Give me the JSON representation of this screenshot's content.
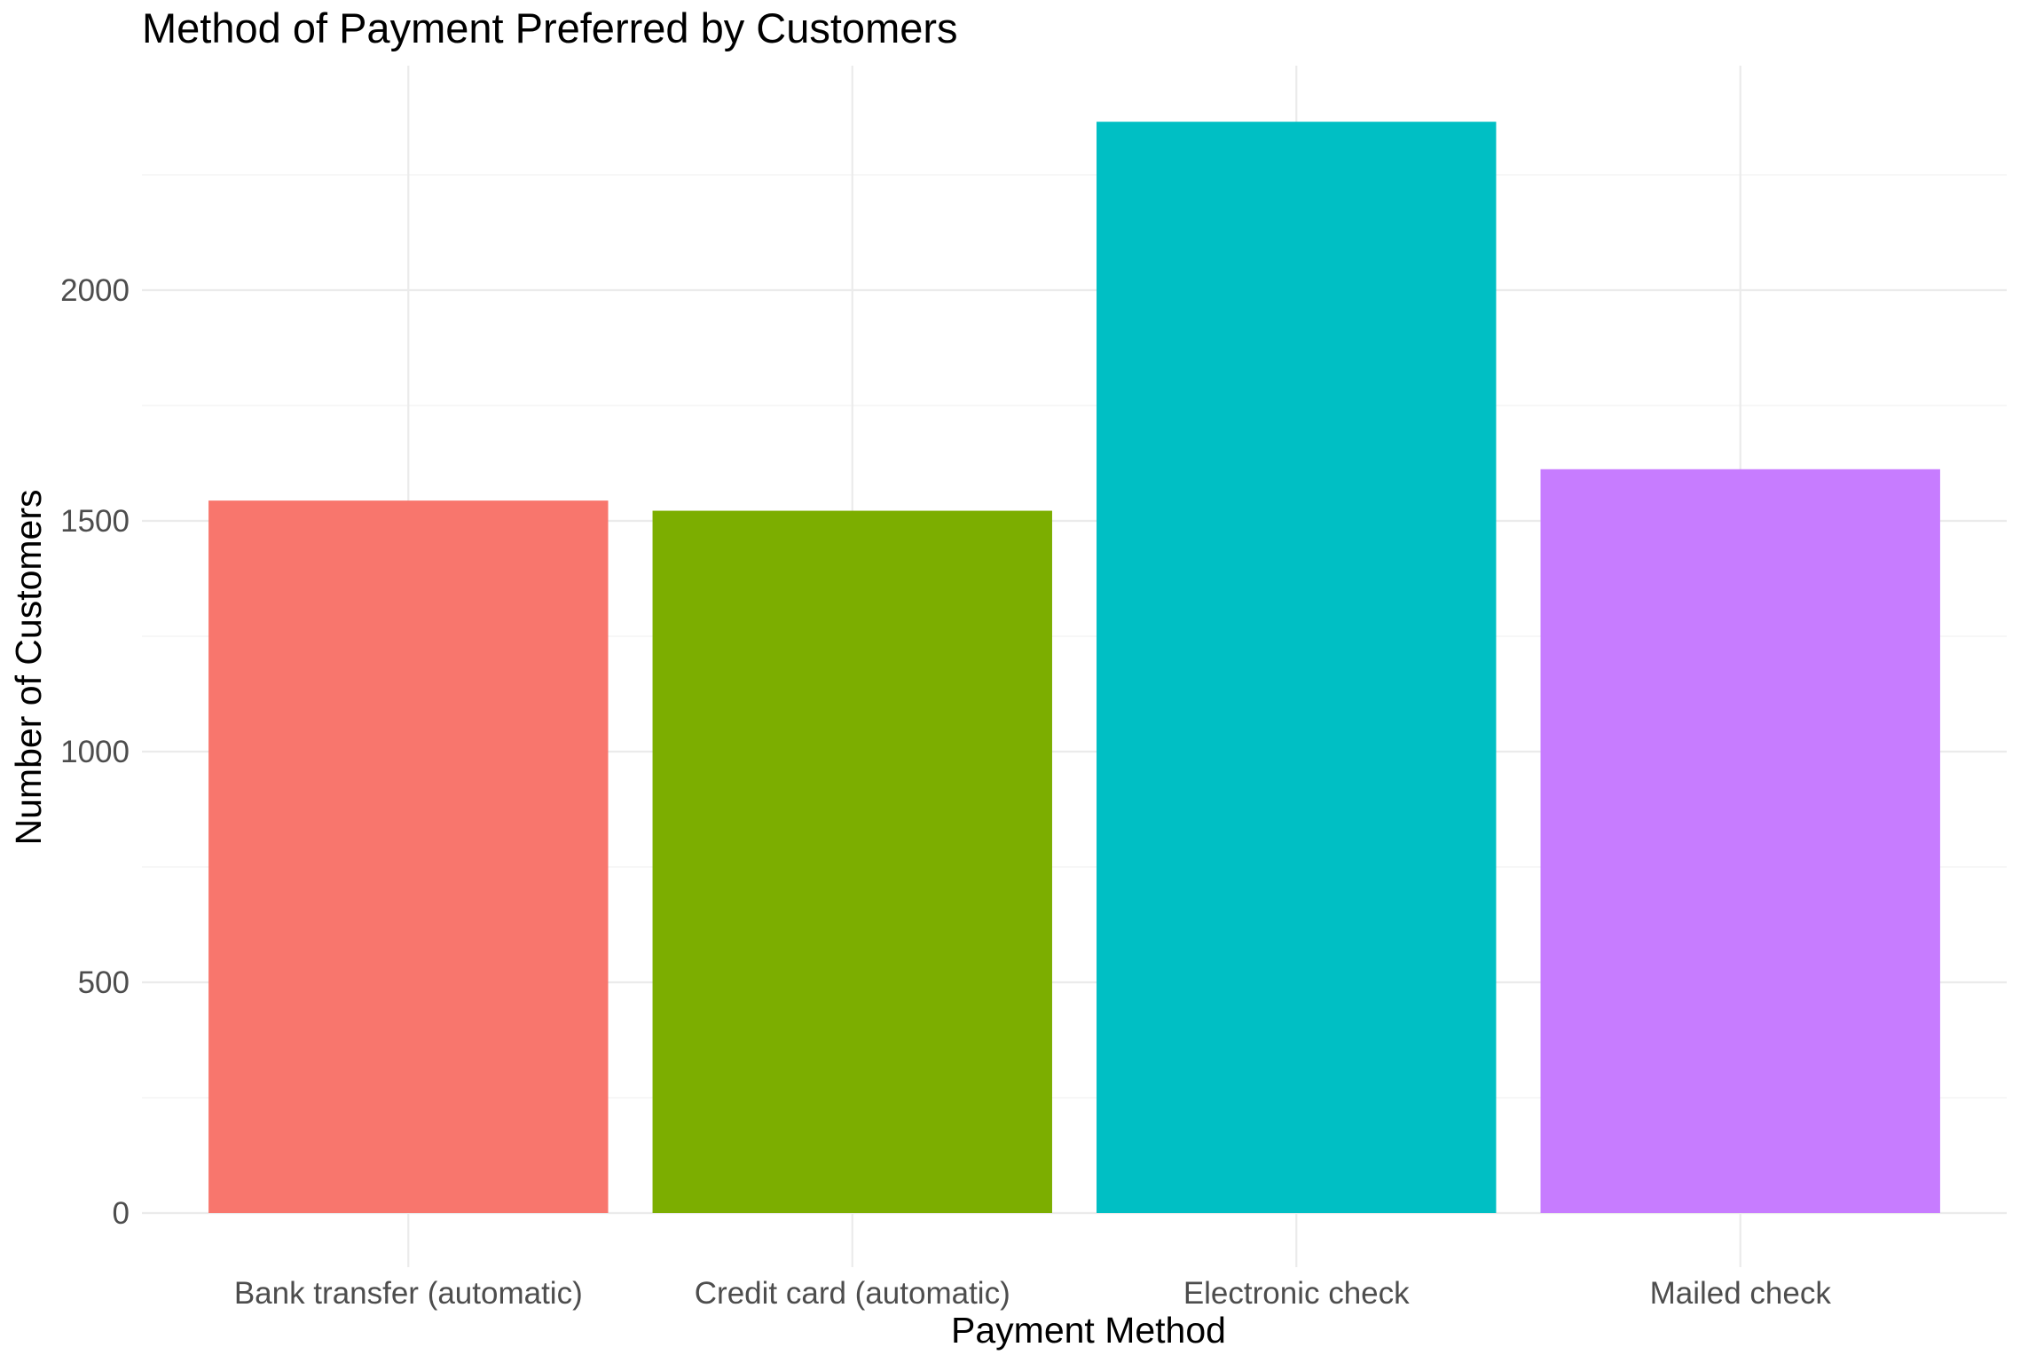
{
  "chart_data": {
    "type": "bar",
    "title": "Method of Payment Preferred by Customers",
    "xlabel": "Payment Method",
    "ylabel": "Number of Customers",
    "categories": [
      "Bank transfer (automatic)",
      "Credit card (automatic)",
      "Electronic check",
      "Mailed check"
    ],
    "values": [
      1544,
      1522,
      2365,
      1612
    ],
    "colors": [
      "#F8766D",
      "#7CAE00",
      "#00BFC4",
      "#C77CFF"
    ],
    "ylim": [
      0,
      2483
    ],
    "yticks": [
      0,
      500,
      1000,
      1500,
      2000
    ],
    "ytick_labels": [
      "0",
      "500",
      "1000",
      "1500",
      "2000"
    ],
    "grid": true,
    "legend": "none",
    "theme": "minimal"
  }
}
